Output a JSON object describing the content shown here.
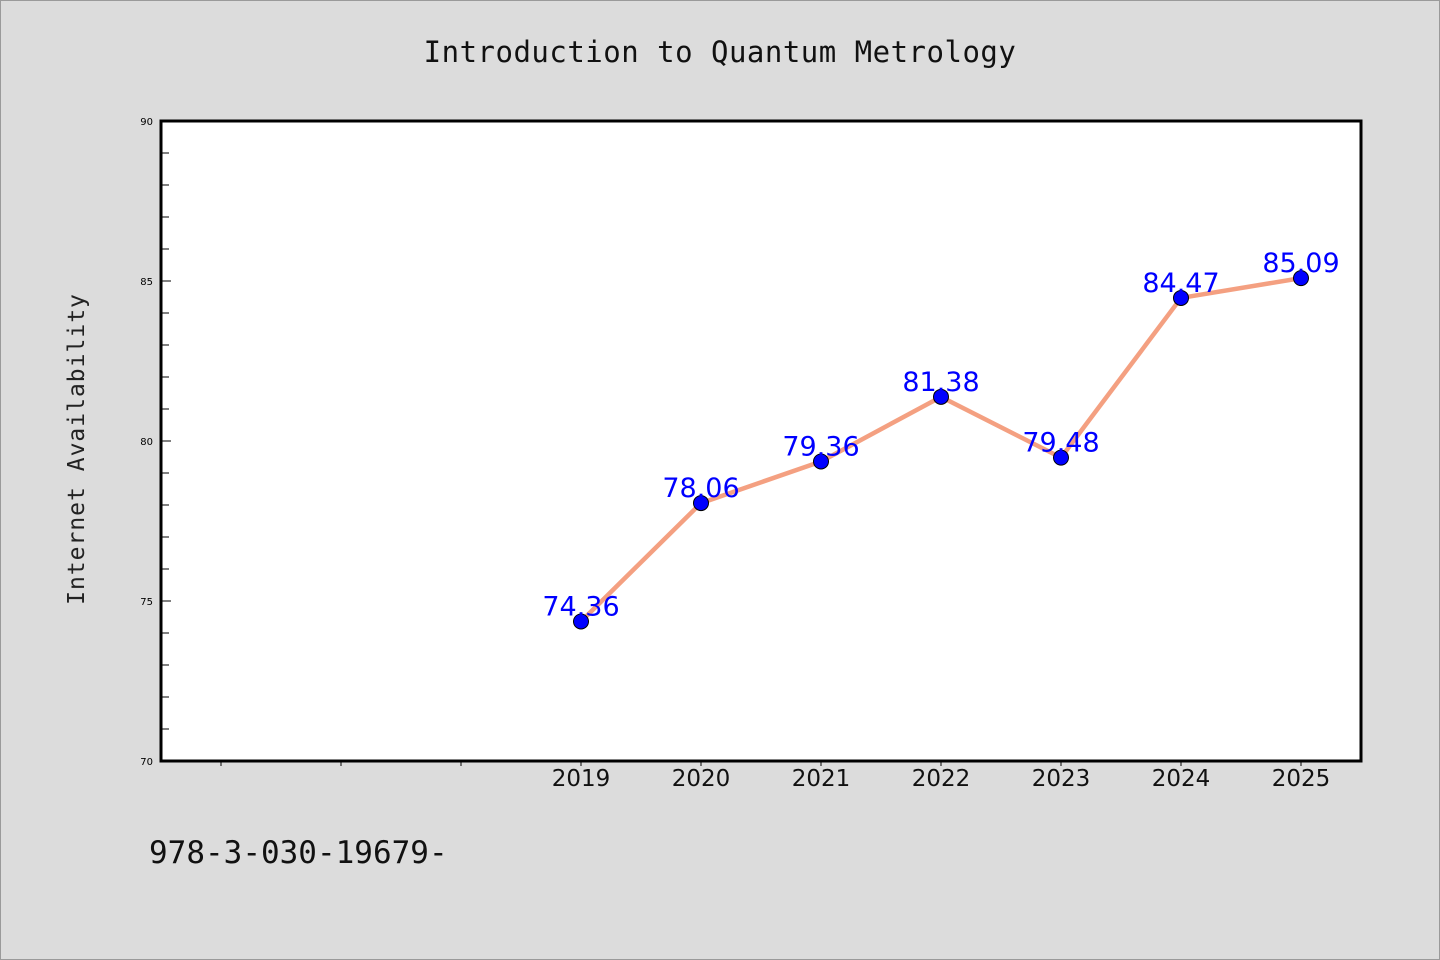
{
  "chart_data": {
    "type": "line",
    "title": "Introduction to Quantum Metrology",
    "ylabel": "Internet Availability",
    "xlabel": "",
    "x": [
      "2019",
      "2020",
      "2021",
      "2022",
      "2023",
      "2024",
      "2025"
    ],
    "values": [
      74.36,
      78.06,
      79.36,
      81.38,
      79.48,
      84.47,
      85.09
    ],
    "value_labels": [
      "74.36",
      "78.06",
      "79.36",
      "81.38",
      "79.48",
      "84.47",
      "85.09"
    ],
    "ylim": [
      70,
      90
    ],
    "yticks": [
      "70",
      "75",
      "80",
      "85",
      "90"
    ],
    "grid": false,
    "colors": {
      "line": "#f4a081",
      "marker": "#0000ff",
      "label": "#0000ff"
    }
  },
  "footer_text": "978-3-030-19679-"
}
